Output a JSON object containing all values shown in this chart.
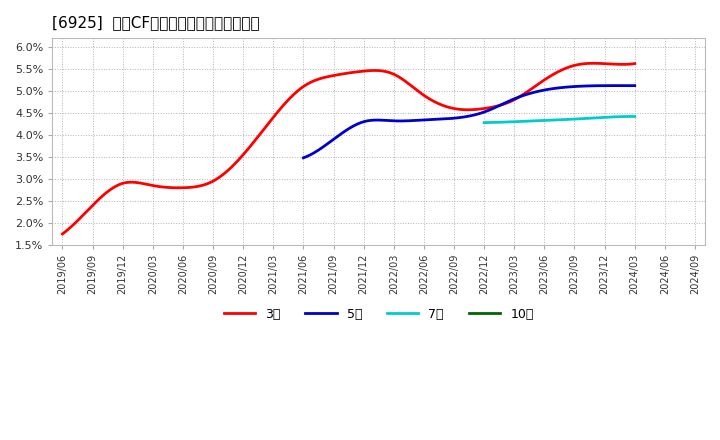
{
  "title": "[6925]  営業CFマージンの標準偏差の推移",
  "background_color": "#ffffff",
  "plot_background_color": "#ffffff",
  "grid_color": "#aaaaaa",
  "ylim": [
    0.015,
    0.062
  ],
  "yticks": [
    0.015,
    0.02,
    0.025,
    0.03,
    0.035,
    0.04,
    0.045,
    0.05,
    0.055,
    0.06
  ],
  "ytick_labels": [
    "1.5%",
    "2.0%",
    "2.5%",
    "3.0%",
    "3.5%",
    "4.0%",
    "4.5%",
    "5.0%",
    "5.5%",
    "6.0%"
  ],
  "legend_entries": [
    "3年",
    "5年",
    "7年",
    "10年"
  ],
  "legend_colors": [
    "#ff0000",
    "#0000cc",
    "#00cccc",
    "#006600"
  ],
  "series_3yr": {
    "color": "#ff0000",
    "dates_num": [
      0,
      3,
      6,
      9,
      12,
      15,
      18,
      21,
      24,
      27,
      30,
      33,
      36,
      39,
      42,
      45,
      48,
      51,
      54,
      57
    ],
    "values": [
      0.0175,
      0.024,
      0.029,
      0.0285,
      0.028,
      0.0295,
      0.0355,
      0.044,
      0.051,
      0.0535,
      0.0545,
      0.0538,
      0.049,
      0.046,
      0.046,
      0.048,
      0.0525,
      0.0558,
      0.0562,
      0.0562
    ]
  },
  "series_5yr": {
    "color": "#0000cc",
    "dates_num": [
      24,
      27,
      30,
      33,
      36,
      39,
      42,
      45,
      48,
      51,
      54,
      57
    ],
    "values": [
      0.0348,
      0.039,
      0.043,
      0.0432,
      0.0434,
      0.0438,
      0.0452,
      0.0482,
      0.0502,
      0.051,
      0.0512,
      0.0512
    ]
  },
  "series_7yr": {
    "color": "#00cccc",
    "dates_num": [
      42,
      45,
      48,
      51,
      54,
      57
    ],
    "values": [
      0.0428,
      0.043,
      0.0433,
      0.0436,
      0.044,
      0.0442
    ]
  },
  "series_10yr": {
    "color": "#006600",
    "dates_num": [],
    "values": []
  },
  "xticks_num": [
    0,
    3,
    6,
    9,
    12,
    15,
    18,
    21,
    24,
    27,
    30,
    33,
    36,
    39,
    42,
    45,
    48,
    51,
    54,
    57,
    60,
    63
  ],
  "xtick_labels": [
    "2019/06",
    "2019/09",
    "2019/12",
    "2020/03",
    "2020/06",
    "2020/09",
    "2020/12",
    "2021/03",
    "2021/06",
    "2021/09",
    "2021/12",
    "2022/03",
    "2022/06",
    "2022/09",
    "2022/12",
    "2023/03",
    "2023/06",
    "2023/09",
    "2023/12",
    "2024/03",
    "2024/06",
    "2024/09"
  ],
  "xlim": [
    -1,
    64
  ]
}
